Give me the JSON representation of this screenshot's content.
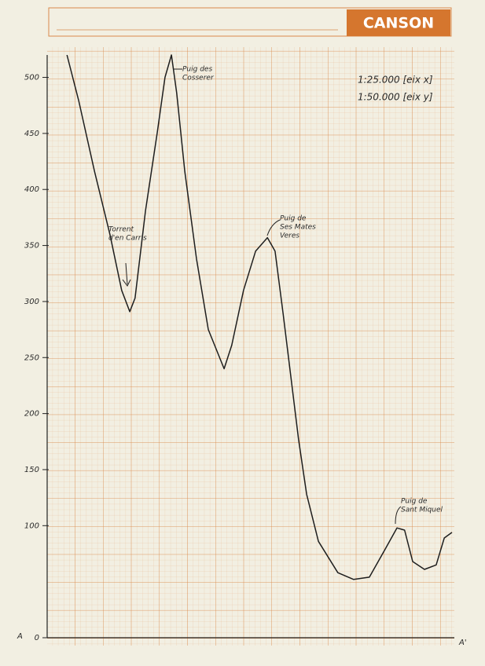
{
  "chart_data": {
    "type": "line",
    "brand": "CANSON",
    "scale_notes": [
      "1:25.000 [eix x]",
      "1:50.000 [eix y]"
    ],
    "start_label": "A",
    "end_label": "A'",
    "annotations": [
      [
        "Puig des",
        "Cosserer"
      ],
      [
        "Torrent",
        "d'en Carris"
      ],
      [
        "Puig de",
        "Ses Mates",
        "Veres"
      ],
      [
        "Puig de",
        "Sant Miquel"
      ]
    ],
    "x": [
      4.9,
      7.8,
      11.7,
      15.5,
      18.4,
      20.4,
      21.7,
      24.3,
      27.2,
      29.1,
      30.7,
      32.0,
      34.0,
      36.9,
      39.8,
      43.7,
      45.6,
      48.5,
      51.5,
      54.4,
      56.3,
      58.3,
      60.2,
      62.1,
      64.1,
      67.0,
      71.8,
      75.7,
      79.6,
      83.5,
      86.4,
      88.3,
      90.3,
      93.2,
      96.1,
      98.1,
      100
    ],
    "series": [
      {
        "color": "#1e1e1e",
        "values": [
          520,
          479,
          416,
          360,
          310,
          291,
          303,
          381,
          451,
          500,
          520,
          486,
          416,
          338,
          275,
          240,
          261,
          310,
          345,
          357,
          345,
          289,
          233,
          177,
          128,
          86,
          58,
          52,
          54,
          79,
          98,
          96,
          68,
          61,
          65,
          89,
          94
        ]
      }
    ],
    "xlim": [
      0,
      100
    ],
    "ylim": [
      0,
      520
    ],
    "yticks": [
      0,
      100,
      150,
      200,
      250,
      300,
      350,
      400,
      450,
      500
    ]
  }
}
